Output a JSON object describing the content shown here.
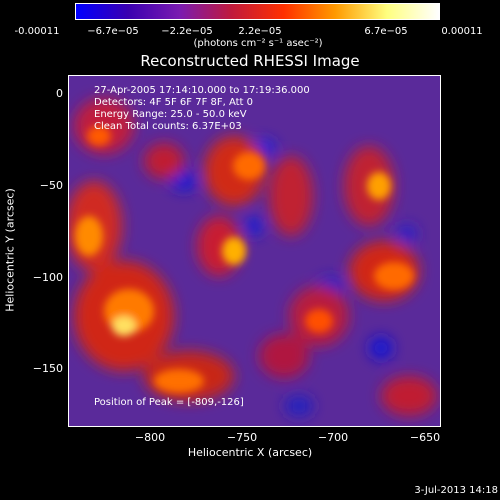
{
  "colorbar": {
    "ticks": [
      "-0.00011",
      "−6.7e−05",
      "−2.2e−05",
      "2.2e−05",
      "6.7e−05",
      "0.00011"
    ],
    "unit": "(photons cm⁻² s⁻¹ asec⁻²)",
    "colors": [
      "#0000ff",
      "#3a00b0",
      "#7a1bb0",
      "#c01a3c",
      "#ff3000",
      "#ff9a00",
      "#ffff80",
      "#ffffff"
    ]
  },
  "title": "Reconstructed RHESSI Image",
  "info": {
    "time": "27-Apr-2005 17:14:10.000 to 17:19:36.000",
    "detectors": "Detectors: 4F 5F 6F 7F 8F, Att 0",
    "energy": "Energy Range: 25.0 - 50.0 keV",
    "clean": "Clean    Total counts: 6.37E+03",
    "peak": "Position of Peak = [-809,-126]"
  },
  "axes": {
    "xlabel": "Heliocentric X (arcsec)",
    "ylabel": "Heliocentric Y (arcsec)",
    "xticks": [
      "−800",
      "−750",
      "−700",
      "−650"
    ],
    "yticks": [
      "0",
      "−50",
      "−100",
      "−150"
    ]
  },
  "timestamp": "3-Jul-2013 14:18"
}
